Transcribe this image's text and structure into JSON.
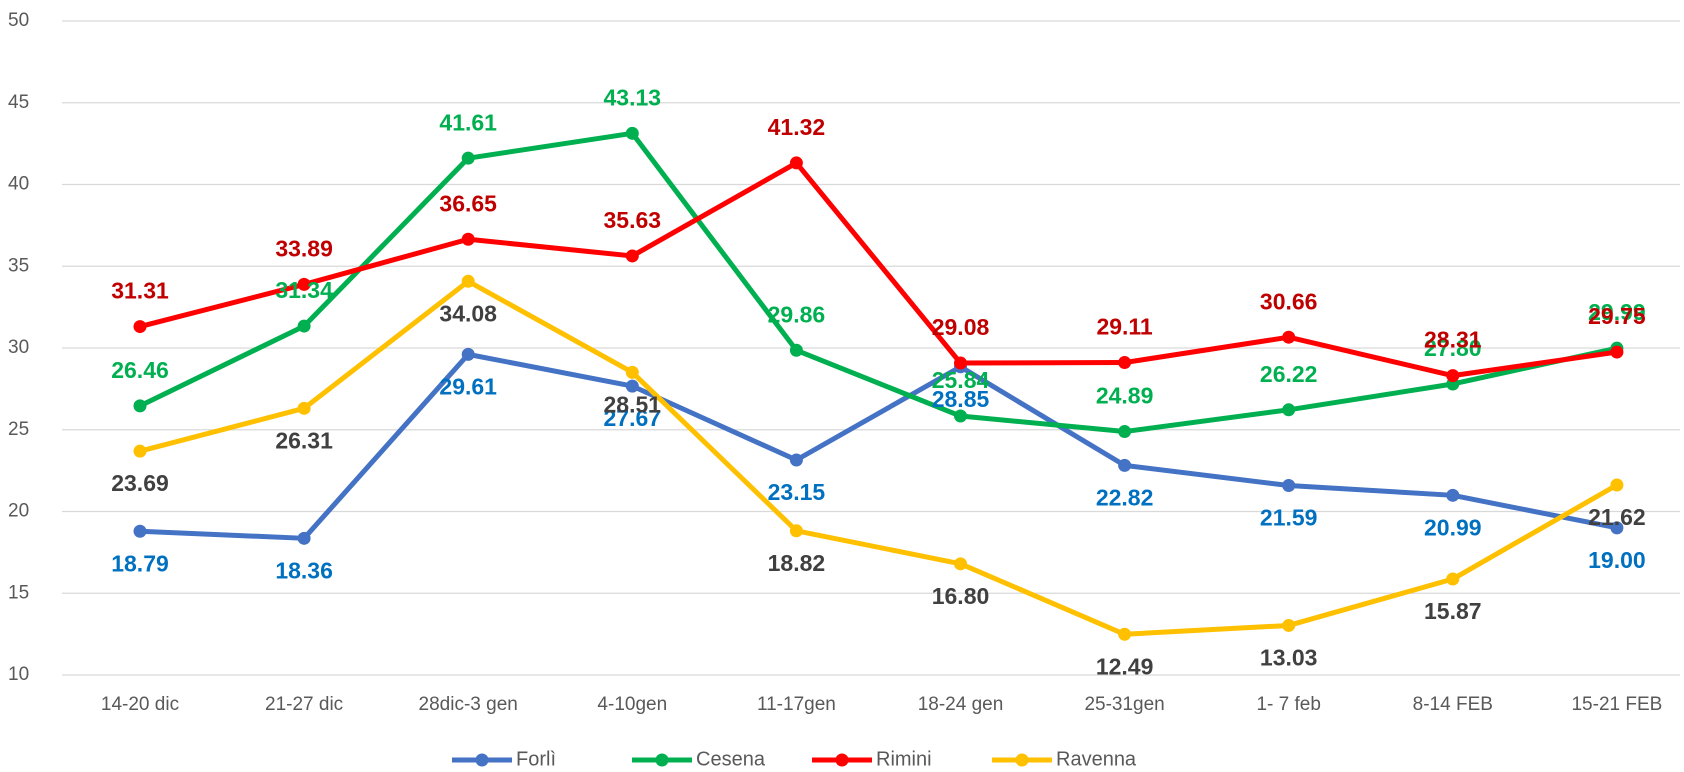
{
  "chart_data": {
    "type": "line",
    "categories": [
      "14-20 dic",
      "21-27 dic",
      "28dic-3 gen",
      "4-10gen",
      "11-17gen",
      "18-24 gen",
      "25-31gen",
      "1- 7 feb",
      "8-14 FEB",
      "15-21 FEB"
    ],
    "series": [
      {
        "name": "Forlì",
        "color": "#4472c4",
        "label_color": "#0070c0",
        "values": [
          18.79,
          18.36,
          29.61,
          27.67,
          23.15,
          28.85,
          22.82,
          21.59,
          20.99,
          19.0
        ],
        "value_labels": [
          "18.79",
          "18.36",
          "29.61",
          "27.67",
          "23.15",
          "28.85",
          "22.82",
          "21.59",
          "20.99",
          "19.00"
        ]
      },
      {
        "name": "Cesena",
        "color": "#00b050",
        "label_color": "#00b050",
        "values": [
          26.46,
          31.34,
          41.61,
          43.13,
          29.86,
          25.84,
          24.89,
          26.22,
          27.8,
          29.99
        ],
        "value_labels": [
          "26.46",
          "31.34",
          "41.61",
          "43.13",
          "29.86",
          "25.84",
          "24.89",
          "26.22",
          "27.80",
          "29.99"
        ]
      },
      {
        "name": "Rimini",
        "color": "#ff0000",
        "label_color": "#c00000",
        "values": [
          31.31,
          33.89,
          36.65,
          35.63,
          41.32,
          29.08,
          29.11,
          30.66,
          28.31,
          29.75
        ],
        "value_labels": [
          "31.31",
          "33.89",
          "36.65",
          "35.63",
          "41.32",
          "29.08",
          "29.11",
          "30.66",
          "28.31",
          "29.75"
        ]
      },
      {
        "name": "Ravenna",
        "color": "#ffc000",
        "label_color": "#404040",
        "values": [
          23.69,
          26.31,
          34.08,
          28.51,
          18.82,
          16.8,
          12.49,
          13.03,
          15.87,
          21.62
        ],
        "value_labels": [
          "23.69",
          "26.31",
          "34.08",
          "28.51",
          "18.82",
          "16.80",
          "12.49",
          "13.03",
          "15.87",
          "21.62"
        ]
      }
    ],
    "ylim": [
      10,
      50
    ],
    "yticks": [
      10,
      15,
      20,
      25,
      30,
      35,
      40,
      45,
      50
    ],
    "grid": true,
    "legend": "bottom"
  }
}
